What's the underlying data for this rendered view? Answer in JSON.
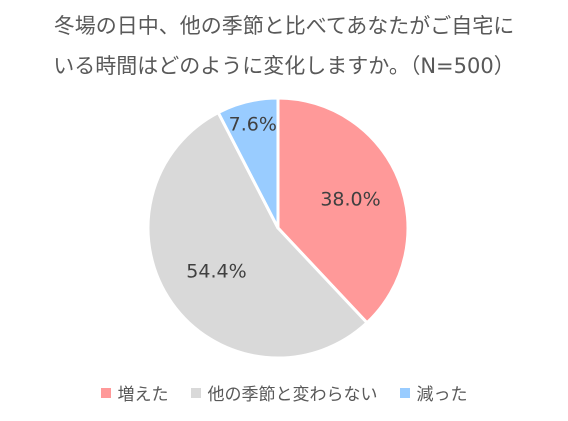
{
  "chart_data": {
    "type": "pie",
    "title_lines": [
      "冬場の日中、他の季節と比べてあなたがご自宅に",
      "いる時間はどのように変化しますか。（N=500）"
    ],
    "categories": [
      "増えた",
      "他の季節と変わらない",
      "減った"
    ],
    "values": [
      38.0,
      54.4,
      7.6
    ],
    "data_labels": [
      "38.0%",
      "54.4%",
      "7.6%"
    ],
    "colors": [
      "#ff9999",
      "#d9d9d9",
      "#99ccff"
    ],
    "start_angle": "12 o'clock",
    "direction": "clockwise",
    "legend_position": "bottom"
  }
}
